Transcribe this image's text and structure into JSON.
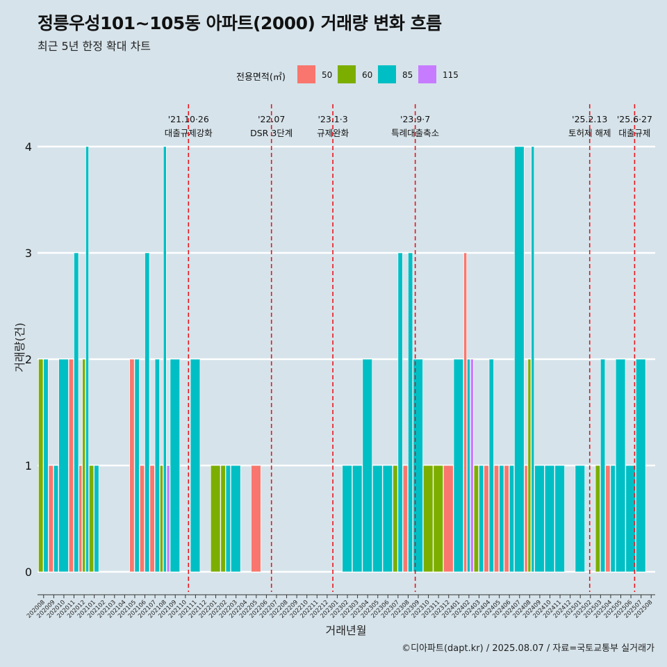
{
  "header": {
    "title": "정릉우성101~105동 아파트(2000) 거래량 변화 흐름",
    "subtitle": "최근 5년 한정 확대 차트"
  },
  "legend": {
    "title": "전용면적(㎡)",
    "items": [
      {
        "label": "50",
        "color": "#F8766D"
      },
      {
        "label": "60",
        "color": "#7CAE00"
      },
      {
        "label": "85",
        "color": "#00BFC4"
      },
      {
        "label": "115",
        "color": "#C77CFF"
      }
    ]
  },
  "caption": "©디아파트(dapt.kr) / 2025.08.07 / 자료=국토교통부 실거래가",
  "chart_data": {
    "type": "bar",
    "title": "정릉우성101~105동 아파트(2000) 거래량 변화 흐름",
    "xlabel": "거래년월",
    "ylabel": "거래량(건)",
    "ylim": [
      0,
      4
    ],
    "yticks": [
      0,
      1,
      2,
      3,
      4
    ],
    "grid": true,
    "legend_position": "top",
    "categories": [
      "202008",
      "202009",
      "202010",
      "202011",
      "202012",
      "202101",
      "202102",
      "202103",
      "202104",
      "202105",
      "202106",
      "202107",
      "202108",
      "202109",
      "202110",
      "202111",
      "202112",
      "202201",
      "202202",
      "202203",
      "202204",
      "202205",
      "202206",
      "202207",
      "202208",
      "202209",
      "202210",
      "202211",
      "202212",
      "202301",
      "202302",
      "202303",
      "202304",
      "202305",
      "202306",
      "202307",
      "202308",
      "202309",
      "202310",
      "202311",
      "202312",
      "202401",
      "202402",
      "202403",
      "202404",
      "202405",
      "202406",
      "202407",
      "202408",
      "202409",
      "202410",
      "202411",
      "202412",
      "202501",
      "202502",
      "202503",
      "202504",
      "202505",
      "202506",
      "202507",
      "202508"
    ],
    "series": [
      {
        "name": "50",
        "color": "#F8766D",
        "values": [
          0,
          1,
          0,
          2,
          1,
          0,
          0,
          0,
          0,
          2,
          1,
          1,
          0,
          0,
          0,
          0,
          0,
          0,
          0,
          0,
          0,
          1,
          0,
          0,
          0,
          0,
          0,
          0,
          0,
          0,
          0,
          0,
          0,
          0,
          0,
          0,
          1,
          0,
          0,
          0,
          1,
          0,
          3,
          0,
          1,
          1,
          1,
          0,
          1,
          0,
          0,
          0,
          0,
          0,
          0,
          0,
          1,
          0,
          0,
          0,
          0
        ]
      },
      {
        "name": "60",
        "color": "#7CAE00",
        "values": [
          2,
          0,
          0,
          0,
          2,
          1,
          0,
          0,
          0,
          0,
          0,
          0,
          1,
          0,
          0,
          0,
          0,
          1,
          1,
          0,
          0,
          0,
          0,
          0,
          0,
          0,
          0,
          0,
          0,
          0,
          0,
          0,
          0,
          0,
          0,
          1,
          0,
          0,
          1,
          1,
          0,
          0,
          0,
          1,
          0,
          0,
          0,
          0,
          2,
          0,
          0,
          0,
          0,
          0,
          0,
          1,
          0,
          0,
          0,
          0,
          0
        ]
      },
      {
        "name": "85",
        "color": "#00BFC4",
        "values": [
          2,
          1,
          2,
          3,
          4,
          1,
          0,
          0,
          0,
          2,
          3,
          2,
          4,
          2,
          0,
          2,
          0,
          0,
          1,
          1,
          0,
          0,
          0,
          0,
          0,
          0,
          0,
          0,
          0,
          0,
          1,
          1,
          2,
          1,
          1,
          3,
          3,
          2,
          0,
          0,
          0,
          2,
          2,
          1,
          2,
          1,
          1,
          4,
          4,
          1,
          1,
          1,
          0,
          1,
          0,
          2,
          1,
          2,
          1,
          2,
          0
        ]
      },
      {
        "name": "115",
        "color": "#C77CFF",
        "values": [
          0,
          0,
          0,
          0,
          0,
          0,
          0,
          0,
          0,
          0,
          0,
          0,
          1,
          0,
          0,
          0,
          0,
          0,
          0,
          0,
          0,
          0,
          0,
          0,
          0,
          0,
          0,
          0,
          0,
          0,
          0,
          0,
          0,
          0,
          0,
          0,
          0,
          0,
          0,
          0,
          0,
          0,
          2,
          0,
          0,
          0,
          0,
          0,
          0,
          0,
          0,
          0,
          0,
          0,
          0,
          0,
          0,
          0,
          0,
          0,
          0
        ]
      }
    ],
    "events": [
      {
        "date": "2021-10-26",
        "date_label": "'21.10·26",
        "label": "대출규제강화"
      },
      {
        "date": "2022-07-01",
        "date_label": "'22.07",
        "label": "DSR 3단계"
      },
      {
        "date": "2023-01-03",
        "date_label": "'23.1·3",
        "label": "규제완화"
      },
      {
        "date": "2023-09-07",
        "date_label": "'23.9·7",
        "label": "특례대출축소"
      },
      {
        "date": "2025-02-13",
        "date_label": "'25.2.13",
        "label": "토허제 해제"
      },
      {
        "date": "2025-06-27",
        "date_label": "'25.6·27",
        "label": "대출규제"
      }
    ]
  }
}
